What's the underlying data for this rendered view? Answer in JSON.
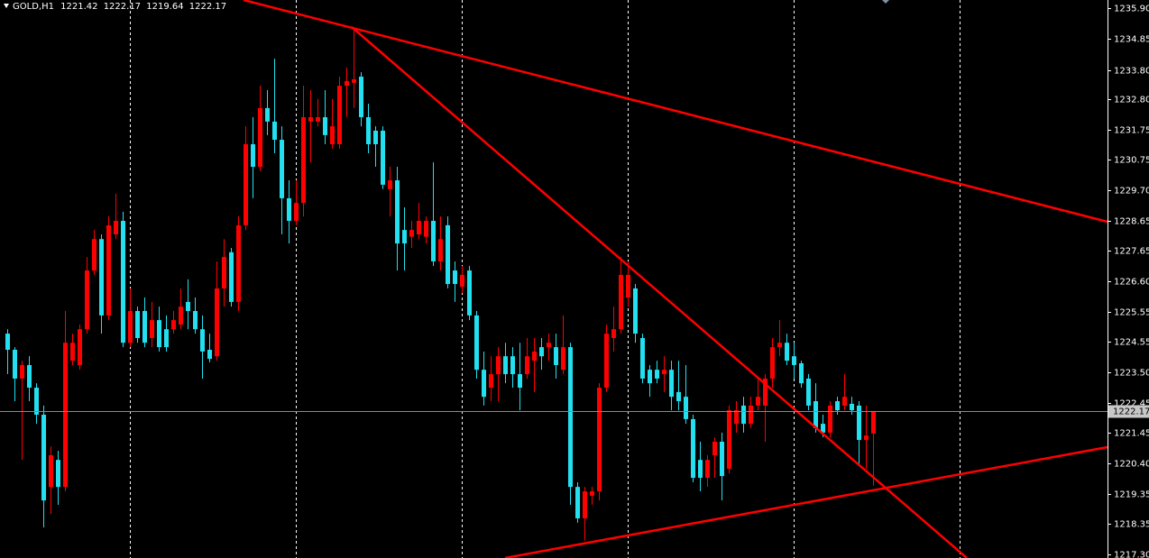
{
  "chart_data": {
    "type": "candlestick",
    "title": "GOLD,H1",
    "header_values": [
      1221.42,
      1222.17,
      1219.64,
      1222.17
    ],
    "bull_color": "#ff0000",
    "bear_color": "#22e0f0",
    "last_price": 1222.17,
    "ylim": [
      1217.18,
      1236.18
    ],
    "yticks": [
      {
        "value": 1235.9,
        "label": "1235.90"
      },
      1234.85,
      {
        "value": 1233.8,
        "label": "1233.80"
      },
      {
        "value": 1232.8,
        "label": "1232.80"
      },
      1231.75,
      1230.75,
      {
        "value": 1229.7,
        "label": "1229.70"
      },
      1228.65,
      1227.65,
      {
        "value": 1226.6,
        "label": "1226.60"
      },
      1225.55,
      1224.55,
      {
        "value": 1223.5,
        "label": "1223.50"
      },
      1222.45,
      1221.45,
      {
        "value": 1220.4,
        "label": "1220.40"
      },
      1219.35,
      1218.35,
      {
        "value": 1217.3,
        "label": "1217.30"
      }
    ],
    "open": [
      1224.82,
      1224.27,
      1223.29,
      1223.75,
      1222.98,
      1222.06,
      1219.6,
      1220.52,
      1219.6,
      1223.9,
      1223.75,
      1224.97,
      1226.97,
      1228.04,
      1225.44,
      1228.2,
      1228.66,
      1224.51,
      1225.59,
      1225.59,
      1224.67,
      1225.28,
      1224.97,
      1224.97,
      1225.13,
      1225.9,
      1225.59,
      1224.97,
      1224.27,
      1224.05,
      1226.36,
      1227.59,
      1225.9,
      1228.51,
      1231.27,
      1230.5,
      1232.5,
      1232.04,
      1231.42,
      1229.43,
      1228.66,
      1229.27,
      1232.04,
      1232.04,
      1232.19,
      1231.27,
      1231.27,
      1233.26,
      1233.36,
      1233.57,
      1232.19,
      1231.73,
      1231.73,
      1229.74,
      1230.04,
      1228.35,
      1228.12,
      1228.2,
      1228.12,
      1228.66,
      1227.28,
      1228.51,
      1226.97,
      1226.42,
      1226.97,
      1225.44,
      1223.59,
      1222.98,
      1223.44,
      1224.05,
      1224.05,
      1223.44,
      1223.44,
      1223.9,
      1224.36,
      1224.36,
      1224.36,
      1223.59,
      1224.36,
      1219.6,
      1218.53,
      1219.3,
      1219.45,
      1222.98,
      1224.67,
      1224.97,
      1226.05,
      1226.36,
      1224.67,
      1223.59,
      1223.59,
      1223.44,
      1223.59,
      1222.83,
      1222.67,
      1221.91,
      1220.52,
      1219.91,
      1220.68,
      1221.14,
      1220.22,
      1221.75,
      1222.37,
      1221.75,
      1222.37,
      1222.37,
      1223.29,
      1224.36,
      1224.51,
      1224.05,
      1223.81,
      1223.29,
      1222.52,
      1221.75,
      1221.45,
      1222.52,
      1222.37,
      1222.43,
      1222.37,
      1221.2,
      1221.42
    ],
    "high": [
      1224.97,
      1224.36,
      1223.9,
      1224.05,
      1223.13,
      1222.37,
      1220.98,
      1220.83,
      1225.59,
      1224.82,
      1225.13,
      1227.43,
      1228.35,
      1228.2,
      1228.81,
      1229.58,
      1228.97,
      1226.36,
      1225.74,
      1226.05,
      1225.9,
      1225.74,
      1225.44,
      1225.59,
      1226.36,
      1226.67,
      1226.05,
      1225.44,
      1224.82,
      1227.28,
      1228.04,
      1227.74,
      1228.81,
      1231.88,
      1232.19,
      1233.26,
      1233.11,
      1234.18,
      1231.88,
      1230.04,
      1230.04,
      1233.26,
      1233.11,
      1232.81,
      1233.11,
      1232.81,
      1233.57,
      1233.88,
      1235.26,
      1233.72,
      1232.65,
      1231.88,
      1231.88,
      1230.5,
      1230.5,
      1229.12,
      1228.66,
      1229.27,
      1228.81,
      1230.65,
      1228.81,
      1228.81,
      1227.28,
      1227.12,
      1227.12,
      1225.59,
      1224.21,
      1224.05,
      1224.36,
      1224.51,
      1224.36,
      1224.51,
      1224.67,
      1224.67,
      1224.67,
      1224.82,
      1224.82,
      1225.44,
      1224.51,
      1219.76,
      1219.6,
      1219.6,
      1223.13,
      1225.13,
      1225.74,
      1227.43,
      1227.28,
      1226.51,
      1224.82,
      1223.75,
      1223.9,
      1224.05,
      1223.9,
      1223.9,
      1223.75,
      1222.06,
      1221.14,
      1220.68,
      1221.29,
      1221.45,
      1222.37,
      1222.52,
      1222.67,
      1222.67,
      1223.29,
      1223.44,
      1224.67,
      1225.28,
      1224.82,
      1224.51,
      1223.9,
      1223.44,
      1223.13,
      1222.06,
      1222.52,
      1222.67,
      1223.44,
      1222.67,
      1222.52,
      1222.37,
      1222.17
    ],
    "low": [
      1223.44,
      1222.52,
      1220.52,
      1222.52,
      1221.75,
      1218.22,
      1218.68,
      1218.99,
      1219.45,
      1223.75,
      1223.59,
      1224.82,
      1226.82,
      1224.82,
      1225.28,
      1228.04,
      1224.36,
      1224.36,
      1224.51,
      1224.36,
      1224.36,
      1224.21,
      1224.21,
      1224.82,
      1224.97,
      1224.97,
      1224.82,
      1223.29,
      1223.84,
      1223.9,
      1225.74,
      1225.74,
      1225.59,
      1228.35,
      1229.43,
      1230.35,
      1231.58,
      1230.96,
      1228.2,
      1227.89,
      1228.51,
      1228.81,
      1230.65,
      1231.88,
      1231.27,
      1231.12,
      1231.12,
      1232.19,
      1232.5,
      1231.88,
      1230.96,
      1230.5,
      1229.74,
      1228.81,
      1226.97,
      1226.97,
      1227.74,
      1228.04,
      1227.89,
      1227.12,
      1226.97,
      1226.36,
      1225.9,
      1226.2,
      1225.28,
      1223.29,
      1222.37,
      1222.52,
      1222.52,
      1223.13,
      1222.98,
      1222.21,
      1223.29,
      1222.83,
      1223.59,
      1223.9,
      1223.29,
      1223.44,
      1218.99,
      1218.38,
      1217.77,
      1218.99,
      1219.14,
      1222.83,
      1224.21,
      1224.82,
      1225.74,
      1224.51,
      1223.13,
      1222.67,
      1223.13,
      1222.83,
      1222.21,
      1222.21,
      1221.75,
      1219.76,
      1219.45,
      1219.6,
      1219.91,
      1219.14,
      1220.06,
      1221.45,
      1221.45,
      1221.6,
      1222.21,
      1221.14,
      1222.98,
      1224.05,
      1223.75,
      1223.29,
      1222.98,
      1222.21,
      1221.45,
      1221.29,
      1221.29,
      1222.06,
      1222.21,
      1222.06,
      1220.37,
      1220.22,
      1219.64
    ],
    "close": [
      1224.27,
      1223.29,
      1223.75,
      1222.98,
      1222.06,
      1219.14,
      1220.68,
      1219.6,
      1224.51,
      1224.51,
      1224.97,
      1226.97,
      1228.04,
      1225.44,
      1228.51,
      1228.66,
      1224.51,
      1225.59,
      1224.67,
      1224.51,
      1225.28,
      1224.36,
      1224.36,
      1225.28,
      1225.74,
      1225.59,
      1224.97,
      1224.21,
      1223.96,
      1226.36,
      1227.43,
      1225.9,
      1228.51,
      1231.27,
      1230.5,
      1232.5,
      1232.04,
      1231.42,
      1229.43,
      1228.66,
      1229.27,
      1232.19,
      1232.19,
      1232.19,
      1231.58,
      1231.88,
      1233.26,
      1233.42,
      1233.48,
      1232.19,
      1231.27,
      1231.27,
      1229.89,
      1230.04,
      1227.89,
      1227.89,
      1228.35,
      1228.66,
      1228.66,
      1227.28,
      1228.04,
      1226.51,
      1226.51,
      1226.82,
      1225.44,
      1223.59,
      1222.67,
      1223.44,
      1224.05,
      1223.44,
      1223.44,
      1222.98,
      1224.05,
      1224.21,
      1224.05,
      1224.51,
      1223.75,
      1224.36,
      1219.6,
      1218.53,
      1219.45,
      1219.45,
      1222.98,
      1224.82,
      1224.97,
      1226.82,
      1226.82,
      1224.82,
      1223.29,
      1223.13,
      1223.29,
      1223.59,
      1222.67,
      1222.52,
      1221.91,
      1219.91,
      1219.91,
      1220.52,
      1221.14,
      1219.97,
      1222.21,
      1222.21,
      1221.75,
      1222.37,
      1222.67,
      1223.29,
      1224.36,
      1224.51,
      1223.9,
      1223.75,
      1223.13,
      1222.37,
      1221.6,
      1221.45,
      1222.37,
      1222.21,
      1222.67,
      1222.21,
      1221.2,
      1221.35,
      1222.17
    ]
  }
}
